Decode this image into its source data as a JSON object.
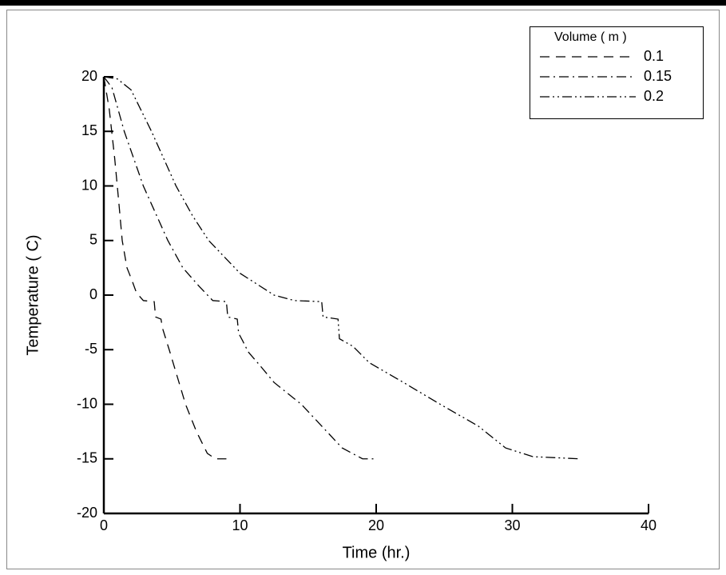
{
  "chart_data": {
    "type": "line",
    "xlabel": "Time (hr.)",
    "ylabel": "Temperature ( C)",
    "legend_title": "Volume ( m )",
    "legend": "top-right",
    "xlim": [
      0,
      40
    ],
    "xticks": [
      0,
      10,
      20,
      30,
      40
    ],
    "ylim": [
      -20,
      20
    ],
    "yticks": [
      -20,
      -15,
      -10,
      -5,
      0,
      5,
      10,
      15,
      20
    ],
    "series": [
      {
        "name": "0.1",
        "color": "#000000",
        "style": "dashed",
        "x": [
          0,
          0.4,
          0.8,
          1.1,
          1.35,
          1.7,
          2.05,
          2.4,
          2.9,
          3.7,
          3.8,
          4.2,
          4.3,
          4.5,
          4.8,
          5.4,
          6.0,
          6.8,
          7.6,
          8.2,
          9
        ],
        "values": [
          20,
          17,
          12.5,
          8.5,
          5,
          2.5,
          1.4,
          0.2,
          -0.5,
          -0.6,
          -2,
          -2.2,
          -3,
          -3.8,
          -5,
          -7.5,
          -10,
          -12.5,
          -14.5,
          -15,
          -15
        ]
      },
      {
        "name": "0.15",
        "color": "#000000",
        "style": "dash-dot",
        "x": [
          0,
          0.6,
          1.5,
          2.2,
          2.9,
          3.8,
          4.7,
          5.8,
          7.0,
          8.0,
          9.0,
          9.1,
          9.8,
          9.9,
          10.2,
          10.6,
          11.5,
          12.5,
          14.5,
          16.0,
          17.5,
          19.0,
          20
        ],
        "values": [
          20,
          19,
          15,
          12.5,
          10,
          7.5,
          5,
          2.5,
          0.8,
          -0.5,
          -0.6,
          -2,
          -2.2,
          -3.5,
          -4.2,
          -5.2,
          -6.5,
          -8,
          -10,
          -12,
          -14,
          -15,
          -15
        ]
      },
      {
        "name": "0.2",
        "color": "#000000",
        "style": "dash-dot-dot",
        "x": [
          0,
          1,
          2,
          3.5,
          5.3,
          6.5,
          7.7,
          10,
          12.5,
          14,
          16,
          16.1,
          17.2,
          17.3,
          18.3,
          19.5,
          22,
          24.7,
          27.5,
          29.5,
          31.5,
          35
        ],
        "values": [
          20,
          19.8,
          18.8,
          15,
          10,
          7.3,
          5,
          2,
          0,
          -0.5,
          -0.6,
          -2,
          -2.2,
          -4,
          -4.7,
          -6.2,
          -8,
          -10,
          -12,
          -14,
          -14.8,
          -15
        ]
      }
    ]
  }
}
